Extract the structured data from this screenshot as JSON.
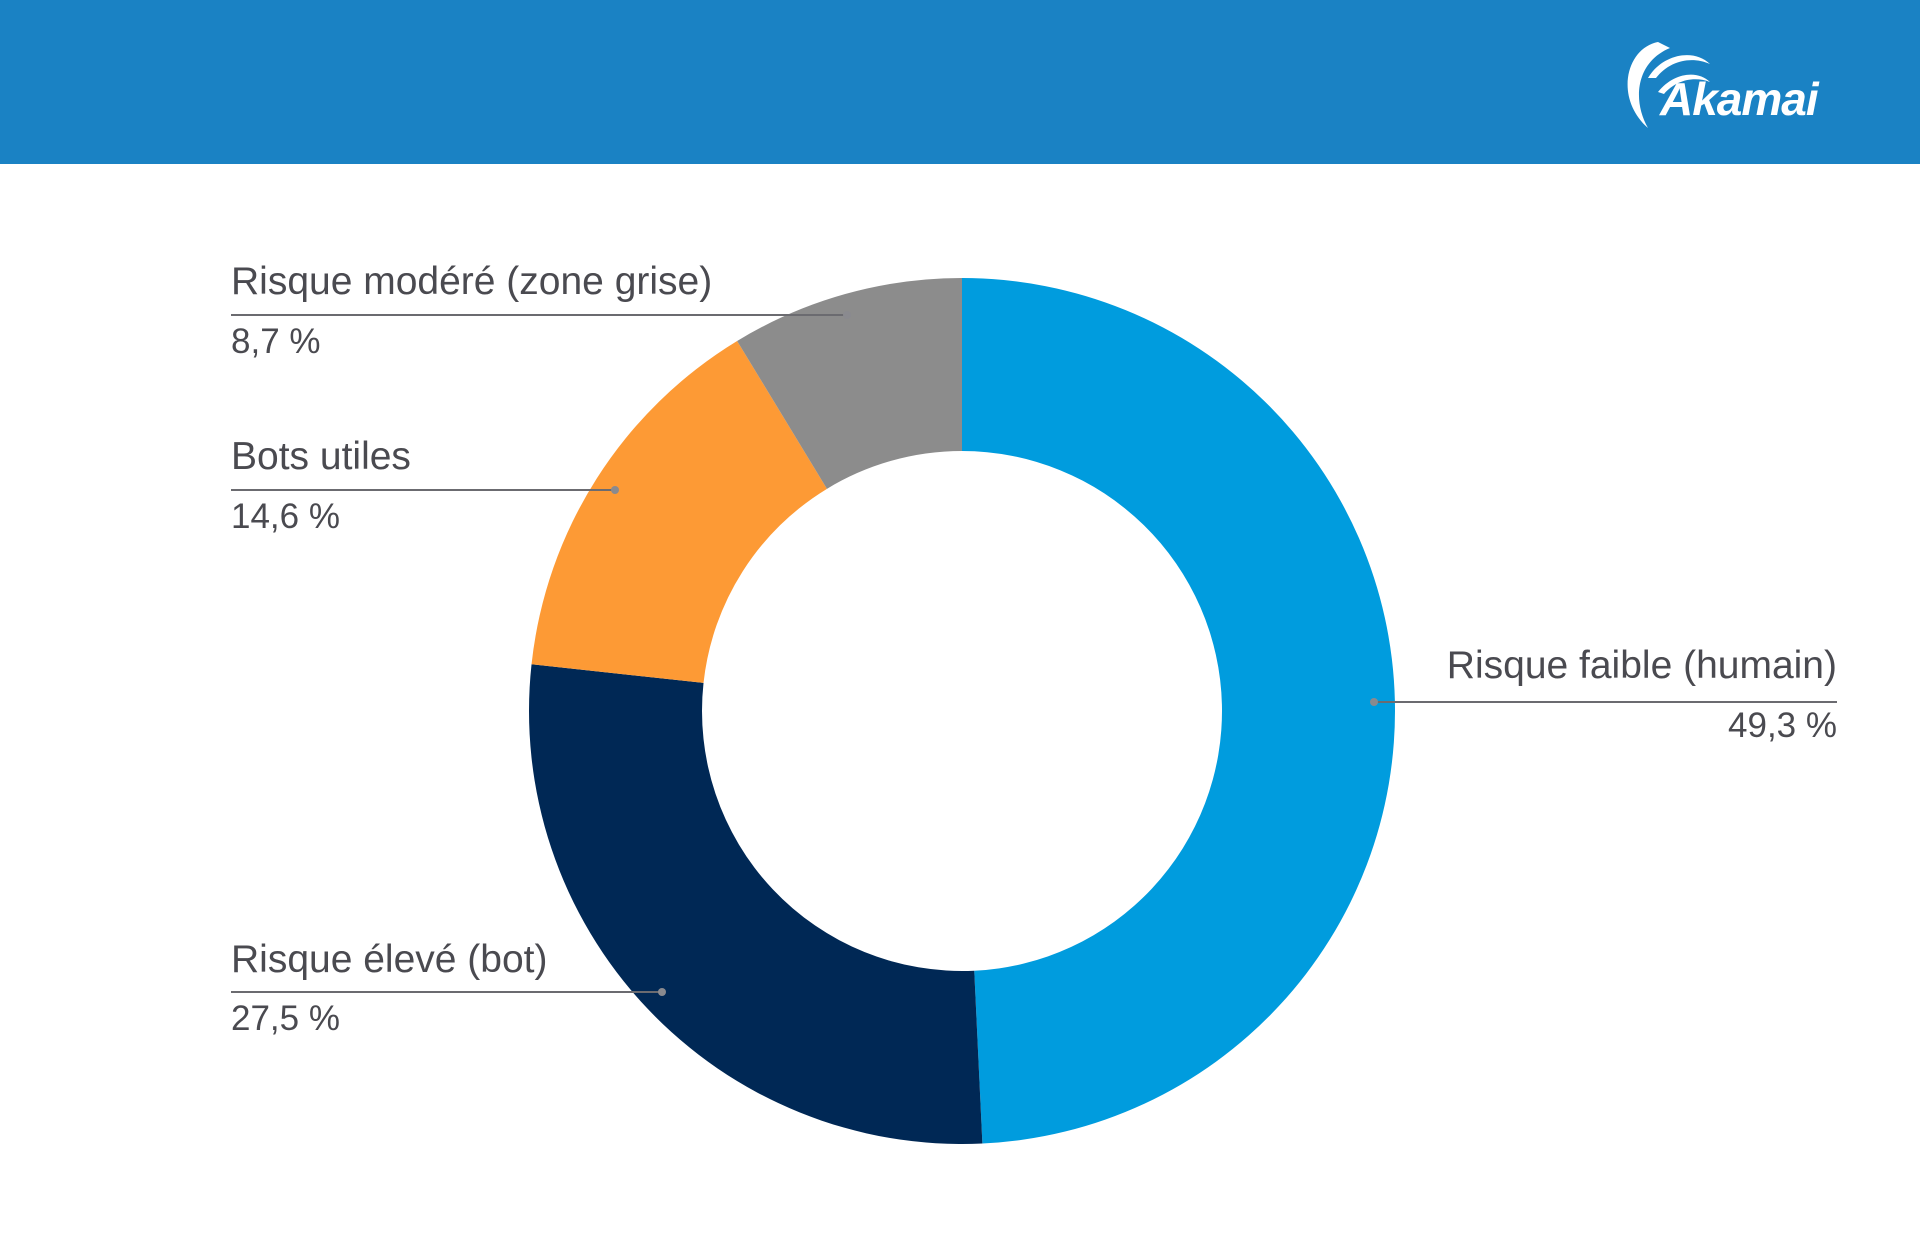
{
  "brand": {
    "logo_text": "Akamai",
    "header_color": "#1a82c4"
  },
  "chart_data": {
    "type": "pie",
    "donut": true,
    "start": "top",
    "direction": "clockwise",
    "slices": [
      {
        "label": "Risque faible (humain)",
        "value": 49.3,
        "value_text": "49,3 %",
        "color": "#009cde"
      },
      {
        "label": "Risque élevé (bot)",
        "value": 27.5,
        "value_text": "27,5 %",
        "color": "#002855"
      },
      {
        "label": "Bots utiles",
        "value": 14.6,
        "value_text": "14,6 %",
        "color": "#fd9a35"
      },
      {
        "label": "Risque modéré (zone grise)",
        "value": 8.7,
        "value_text": "8,7 %",
        "color": "#8c8c8c"
      }
    ]
  }
}
